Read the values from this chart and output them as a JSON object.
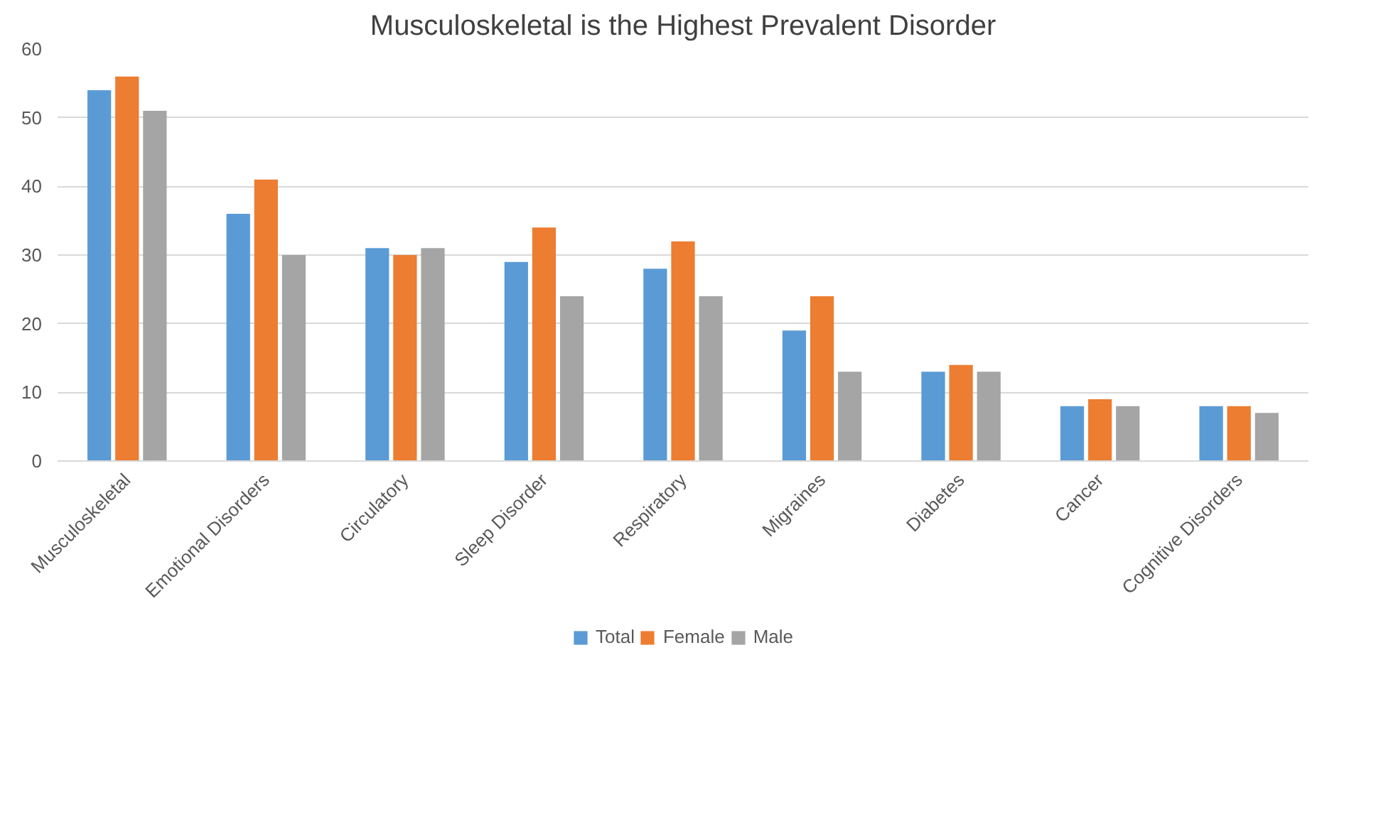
{
  "chart_data": {
    "type": "bar",
    "title": "Musculoskeletal is the Highest Prevalent Disorder",
    "categories": [
      "Musculoskeletal",
      "Emotional Disorders",
      "Circulatory",
      "Sleep Disorder",
      "Respiratory",
      "Migraines",
      "Diabetes",
      "Cancer",
      "Cognitive Disorders"
    ],
    "series": [
      {
        "name": "Total",
        "color": "#5b9bd5",
        "values": [
          54,
          36,
          31,
          29,
          28,
          19,
          13,
          8,
          8
        ]
      },
      {
        "name": "Female",
        "color": "#ed7d31",
        "values": [
          56,
          41,
          30,
          34,
          32,
          24,
          14,
          9,
          8
        ]
      },
      {
        "name": "Male",
        "color": "#a5a5a5",
        "values": [
          51,
          30,
          31,
          24,
          24,
          13,
          13,
          8,
          7
        ]
      }
    ],
    "ylim": [
      0,
      60
    ],
    "yticks": [
      0,
      10,
      20,
      30,
      40,
      50,
      60
    ],
    "grid": "y",
    "legend": "bottom"
  }
}
